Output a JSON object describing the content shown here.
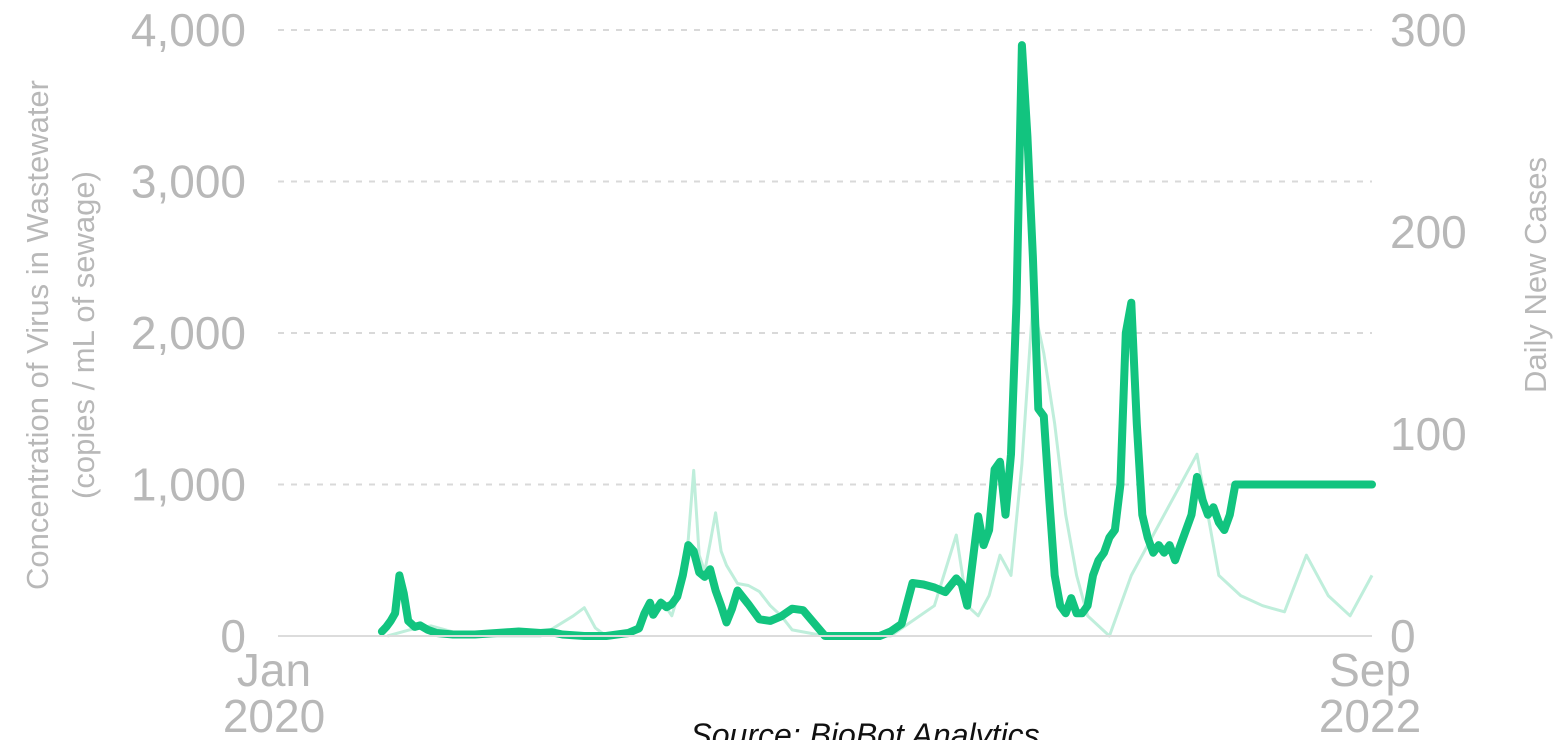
{
  "chart_data": {
    "type": "line",
    "x_start_label": [
      "Jan",
      "2020"
    ],
    "x_end_label": [
      "Sep",
      "2022"
    ],
    "y_left": {
      "label_line1": "Concentration of Virus in Wastewater",
      "label_line2": "(copies / mL of sewage)",
      "ticks": [
        0,
        1000,
        2000,
        3000,
        4000
      ],
      "tick_labels": [
        "0",
        "1,000",
        "2,000",
        "3,000",
        "4,000"
      ],
      "ylim": [
        0,
        4000
      ]
    },
    "y_right": {
      "label": "Daily New Cases",
      "ticks": [
        0,
        100,
        200,
        300
      ],
      "tick_labels": [
        "0",
        "100",
        "200",
        "300"
      ],
      "ylim": [
        0,
        300
      ]
    },
    "grid": "horizontal dashed",
    "source": "Source: BioBot Analytics",
    "colors": {
      "wastewater": "#12c47f",
      "cases": "#bfeedb",
      "text": "#b8b8b8"
    },
    "series": [
      {
        "axis": "left",
        "x": [
          0.095,
          0.099,
          0.103,
          0.107,
          0.111,
          0.115,
          0.119,
          0.125,
          0.13,
          0.137,
          0.145,
          0.16,
          0.18,
          0.2,
          0.22,
          0.24,
          0.25,
          0.26,
          0.28,
          0.3,
          0.31,
          0.32,
          0.33,
          0.335,
          0.34,
          0.343,
          0.35,
          0.355,
          0.36,
          0.365,
          0.37,
          0.375,
          0.38,
          0.385,
          0.39,
          0.395,
          0.4,
          0.405,
          0.41,
          0.415,
          0.42,
          0.43,
          0.44,
          0.45,
          0.46,
          0.47,
          0.48,
          0.5,
          0.52,
          0.54,
          0.55,
          0.56,
          0.57,
          0.58,
          0.59,
          0.6,
          0.61,
          0.62,
          0.625,
          0.63,
          0.64,
          0.645,
          0.65,
          0.655,
          0.66,
          0.665,
          0.67,
          0.675,
          0.68,
          0.685,
          0.69,
          0.695,
          0.7,
          0.705,
          0.71,
          0.715,
          0.72,
          0.725,
          0.73,
          0.735,
          0.74,
          0.745,
          0.75,
          0.755,
          0.76,
          0.765,
          0.77,
          0.775,
          0.78,
          0.785,
          0.79,
          0.795,
          0.8,
          0.805,
          0.81,
          0.815,
          0.82,
          0.825,
          0.83,
          0.835,
          0.84,
          0.845,
          0.85,
          0.855,
          0.86,
          0.865,
          0.87,
          0.875,
          0.88,
          0.885,
          0.89,
          0.895,
          0.9,
          0.905,
          0.91,
          0.915,
          0.92,
          0.925,
          0.93,
          0.935,
          0.94,
          0.945,
          0.95,
          0.955,
          0.96,
          0.965,
          0.97,
          0.975,
          0.98,
          0.985,
          0.99,
          0.995,
          1.0
        ],
        "y": [
          30,
          60,
          100,
          150,
          400,
          280,
          100,
          60,
          70,
          40,
          20,
          10,
          10,
          20,
          30,
          20,
          25,
          10,
          0,
          0,
          10,
          20,
          50,
          150,
          220,
          140,
          220,
          190,
          210,
          260,
          400,
          600,
          560,
          420,
          390,
          440,
          300,
          200,
          90,
          180,
          300,
          210,
          110,
          100,
          130,
          180,
          170,
          0,
          0,
          0,
          0,
          30,
          80,
          350,
          340,
          320,
          290,
          380,
          340,
          200,
          790,
          600,
          700,
          1100,
          1150,
          800,
          1200,
          2200,
          3900,
          3300,
          2500,
          1500,
          1450,
          900,
          400,
          200,
          150,
          250,
          150,
          150,
          200,
          400,
          500,
          550,
          650,
          700,
          1000,
          2000,
          2200,
          1400,
          800,
          650,
          550,
          600,
          550,
          600,
          500,
          600,
          700,
          800,
          1050,
          900,
          800,
          850,
          750,
          700,
          800,
          1000,
          1000,
          1000,
          1000,
          1000,
          1000,
          1000,
          1000,
          1000,
          1000,
          1000,
          1000,
          1000,
          1000,
          1000,
          1000,
          1000,
          1000,
          1000,
          1000,
          1000,
          1000,
          1000,
          1000,
          1000,
          1000
        ]
      },
      {
        "axis": "right",
        "x": [
          0.1,
          0.12,
          0.14,
          0.16,
          0.2,
          0.24,
          0.27,
          0.28,
          0.29,
          0.3,
          0.32,
          0.34,
          0.35,
          0.36,
          0.37,
          0.375,
          0.38,
          0.385,
          0.39,
          0.395,
          0.4,
          0.405,
          0.41,
          0.42,
          0.43,
          0.44,
          0.45,
          0.46,
          0.47,
          0.5,
          0.53,
          0.56,
          0.6,
          0.62,
          0.63,
          0.64,
          0.65,
          0.66,
          0.67,
          0.68,
          0.69,
          0.7,
          0.71,
          0.72,
          0.73,
          0.74,
          0.76,
          0.78,
          0.8,
          0.82,
          0.84,
          0.86,
          0.88,
          0.9,
          0.92,
          0.94,
          0.96,
          0.98,
          1.0
        ],
        "y": [
          0,
          3,
          5,
          2,
          0,
          0,
          10,
          14,
          4,
          0,
          0,
          12,
          18,
          10,
          28,
          48,
          82,
          40,
          32,
          46,
          61,
          42,
          35,
          26,
          25,
          22,
          15,
          10,
          3,
          0,
          0,
          0,
          15,
          50,
          15,
          10,
          20,
          40,
          30,
          85,
          165,
          140,
          105,
          60,
          30,
          10,
          0,
          30,
          50,
          70,
          90,
          30,
          20,
          15,
          12,
          40,
          20,
          10,
          30
        ]
      }
    ]
  }
}
